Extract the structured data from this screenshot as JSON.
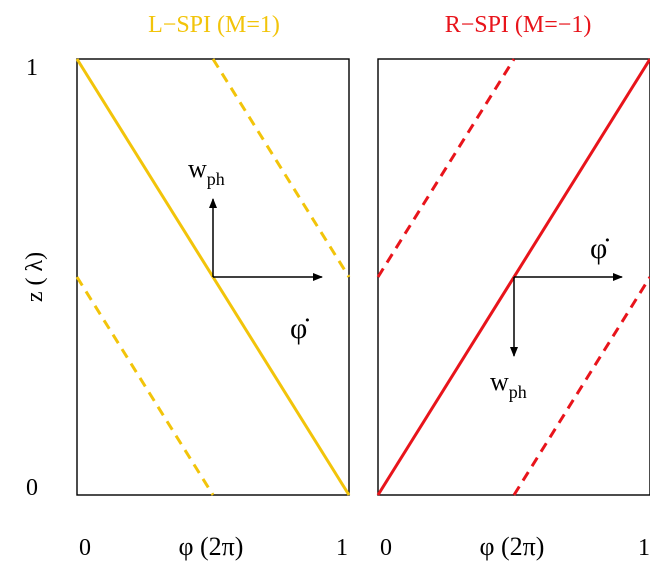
{
  "colors": {
    "left_accent": "#f2c40a",
    "right_accent": "#e8141b",
    "axis": "#000000"
  },
  "left_panel": {
    "title": "L−SPI  (M=1)",
    "phi_dot": "φ̇",
    "w_ph": "w",
    "w_sub": "ph"
  },
  "right_panel": {
    "title": "R−SPI  (M=−1)",
    "phi_dot": "φ̇",
    "w_ph": "w",
    "w_sub": "ph"
  },
  "y_axis": {
    "label": "z  ( λ)",
    "tick_top": "1",
    "tick_bottom": "0"
  },
  "x_axis": {
    "label": "φ  (2π)",
    "left_tick_start": "0",
    "left_tick_end": "1",
    "right_tick_start": "0",
    "right_tick_end": "1"
  }
}
